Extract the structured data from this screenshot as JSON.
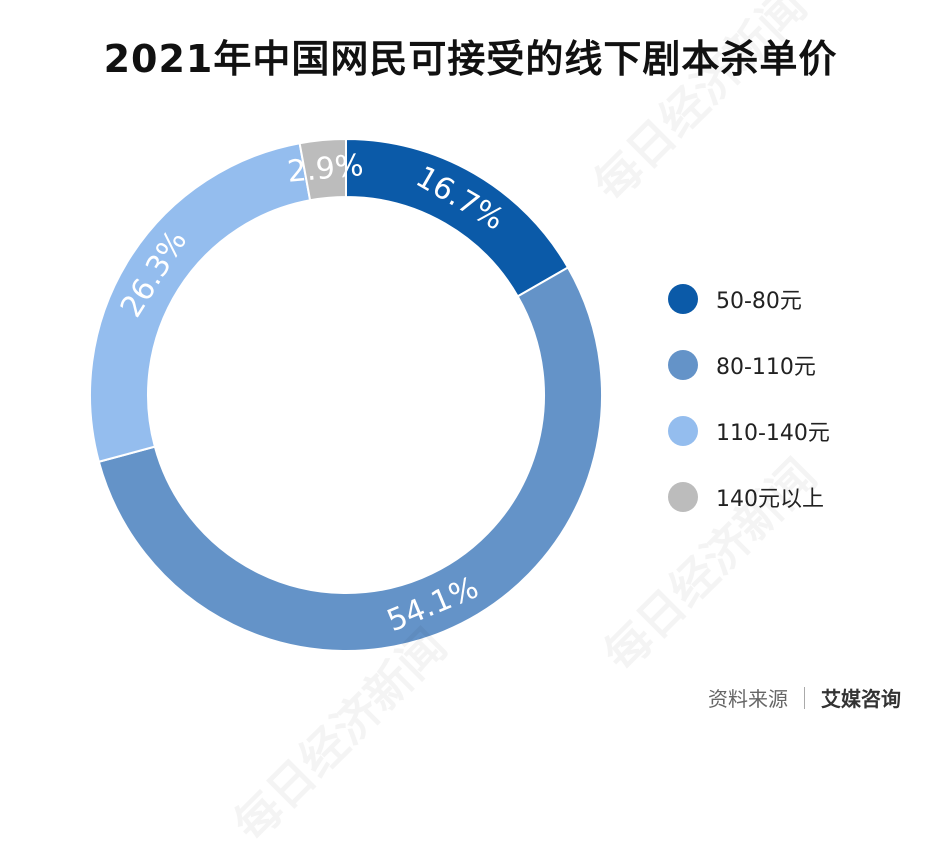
{
  "title": "2021年中国网民可接受的线下剧本杀单价",
  "source": {
    "label": "资料来源",
    "org": "艾媒咨询"
  },
  "watermark": "每日经济新闻",
  "chart_data": {
    "type": "pie",
    "donut": true,
    "title": "2021年中国网民可接受的线下剧本杀单价",
    "legend_position": "right",
    "categories": [
      "50-80元",
      "80-110元",
      "110-140元",
      "140元以上"
    ],
    "values": [
      16.7,
      54.1,
      26.3,
      2.9
    ],
    "labels": [
      "16.7%",
      "54.1%",
      "26.3%",
      "2.9%"
    ],
    "colors": [
      "#0b5aa8",
      "#6493c8",
      "#94bdee",
      "#bcbcbc"
    ]
  }
}
